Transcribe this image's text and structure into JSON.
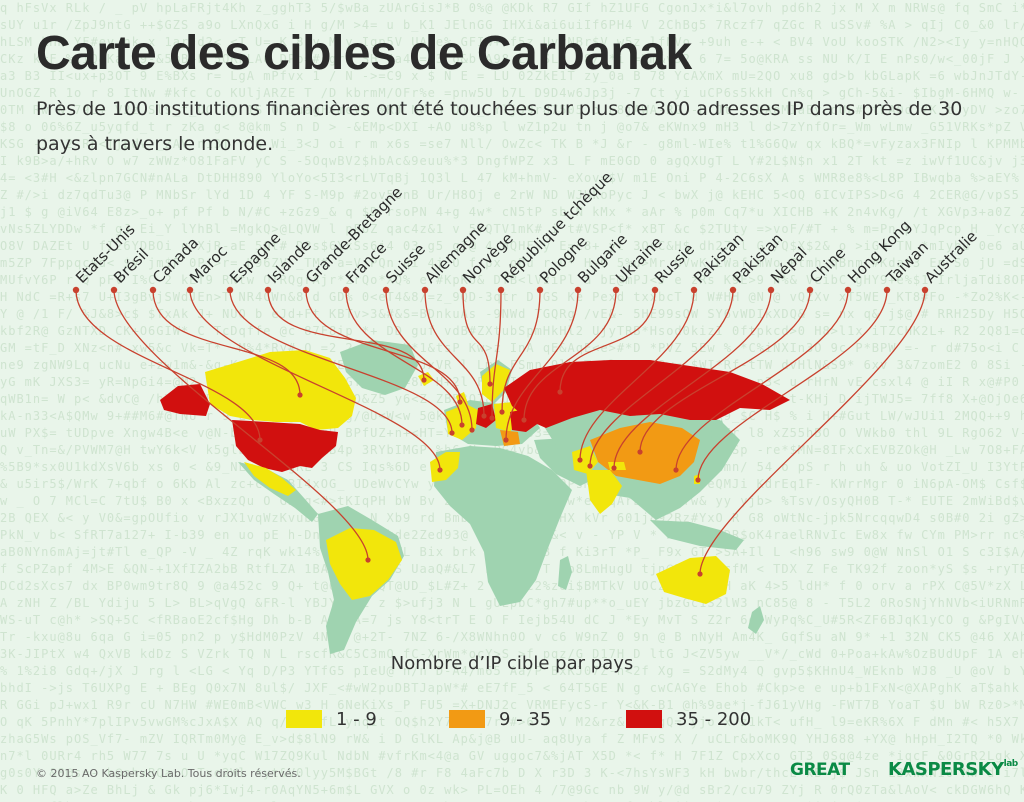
{
  "title": "Carte des cibles de Carbanak",
  "subtitle": "Près de 100 institutions financières ont été touchées sur plus de 300 adresses IP dans près de 30 pays à travers le monde.",
  "colors": {
    "background": "#e9f5ea",
    "land": "#9fd3b0",
    "low": "#f2e60b",
    "mid": "#f29a14",
    "high": "#d1100f",
    "leader": "#c8412e",
    "brand": "#0a8a45"
  },
  "countries": [
    {
      "label": "Etats-Unis",
      "level": "high"
    },
    {
      "label": "Brésil",
      "level": "low"
    },
    {
      "label": "Canada",
      "level": "low"
    },
    {
      "label": "Maroc",
      "level": "low"
    },
    {
      "label": "Espagne",
      "level": "low"
    },
    {
      "label": "Islande",
      "level": "low"
    },
    {
      "label": "Grande-Bretagne",
      "level": "low"
    },
    {
      "label": "France",
      "level": "low"
    },
    {
      "label": "Suisse",
      "level": "low"
    },
    {
      "label": "Allemagne",
      "level": "high"
    },
    {
      "label": "Norvège",
      "level": "low"
    },
    {
      "label": "République tchèque",
      "level": "low"
    },
    {
      "label": "Pologne",
      "level": "low"
    },
    {
      "label": "Bulgarie",
      "level": "low"
    },
    {
      "label": "Ukraine",
      "level": "high"
    },
    {
      "label": "Russie",
      "level": "high"
    },
    {
      "label": "Pakistan",
      "level": "low"
    },
    {
      "label": "Pakistan",
      "level": "low"
    },
    {
      "label": "Népal",
      "level": "low"
    },
    {
      "label": "Chine",
      "level": "mid"
    },
    {
      "label": "Hong Kong",
      "level": "low"
    },
    {
      "label": "Taiwan",
      "level": "low"
    },
    {
      "label": "Australie",
      "level": "low"
    }
  ],
  "legend": {
    "title": "Nombre d’IP cible par pays",
    "items": [
      {
        "label": "1 - 9",
        "color": "#f2e60b"
      },
      {
        "label": "9 - 35",
        "color": "#f29a14"
      },
      {
        "label": "35 - 200",
        "color": "#d1100f"
      }
    ]
  },
  "footer": {
    "copyright": "© 2015 AO Kaspersky Lab. Tous droits réservés.",
    "great_logo": "GREAT",
    "kaspersky_logo": "KASPERSKY",
    "kaspersky_logo_suffix": "lab"
  }
}
